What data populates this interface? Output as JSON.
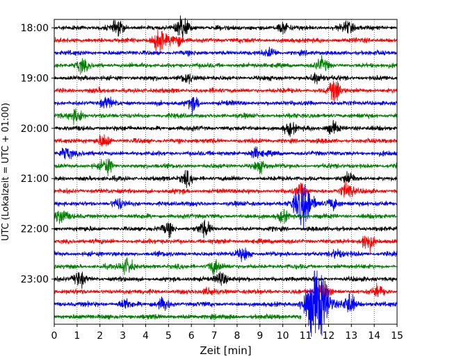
{
  "chart_data": {
    "type": "line",
    "subtype": "helicorder-seismogram",
    "xlabel": "Zeit  [min]",
    "ylabel": "UTC (Lokalzeit = UTC + 01:00)",
    "xlim": [
      0,
      15
    ],
    "x_ticks": [
      "0",
      "1",
      "2",
      "3",
      "4",
      "5",
      "6",
      "7",
      "8",
      "9",
      "10",
      "11",
      "12",
      "13",
      "14",
      "15"
    ],
    "y_tick_labels": [
      "18:00",
      "19:00",
      "20:00",
      "21:00",
      "22:00",
      "23:00"
    ],
    "grid": "vertical dotted at each minute",
    "trace_interval_min": 15,
    "trace_colors": [
      "#000000",
      "#ff0000",
      "#0000ff",
      "#008000"
    ],
    "traces": [
      {
        "start": "18:00",
        "color": "#000000",
        "events": [
          [
            2.8,
            0.3
          ],
          [
            5.6,
            0.6
          ],
          [
            10.0,
            0.25
          ],
          [
            12.8,
            0.3
          ]
        ]
      },
      {
        "start": "18:15",
        "color": "#ff0000",
        "events": [
          [
            4.6,
            0.7
          ],
          [
            5.3,
            0.3
          ]
        ]
      },
      {
        "start": "18:30",
        "color": "#0000ff",
        "events": [
          [
            9.5,
            0.2
          ]
        ]
      },
      {
        "start": "18:45",
        "color": "#008000",
        "events": [
          [
            1.2,
            0.3
          ],
          [
            11.7,
            0.3
          ]
        ]
      },
      {
        "start": "19:00",
        "color": "#000000",
        "events": [
          [
            5.8,
            0.25
          ],
          [
            11.5,
            0.3
          ]
        ]
      },
      {
        "start": "19:15",
        "color": "#ff0000",
        "events": [
          [
            12.3,
            0.6
          ]
        ]
      },
      {
        "start": "19:30",
        "color": "#0000ff",
        "events": [
          [
            6.1,
            0.35
          ],
          [
            2.3,
            0.25
          ]
        ]
      },
      {
        "start": "19:45",
        "color": "#008000",
        "events": [
          [
            1.0,
            0.4
          ]
        ]
      },
      {
        "start": "20:00",
        "color": "#000000",
        "events": [
          [
            10.3,
            0.35
          ],
          [
            12.2,
            0.3
          ]
        ]
      },
      {
        "start": "20:15",
        "color": "#ff0000",
        "events": [
          [
            2.2,
            0.35
          ]
        ]
      },
      {
        "start": "20:30",
        "color": "#0000ff",
        "events": [
          [
            0.5,
            0.35
          ],
          [
            8.8,
            0.25
          ]
        ]
      },
      {
        "start": "20:45",
        "color": "#008000",
        "events": [
          [
            2.3,
            0.35
          ],
          [
            9.0,
            0.3
          ]
        ]
      },
      {
        "start": "21:00",
        "color": "#000000",
        "events": [
          [
            5.8,
            0.35
          ],
          [
            12.9,
            0.25
          ]
        ]
      },
      {
        "start": "21:15",
        "color": "#ff0000",
        "events": [
          [
            12.8,
            0.45
          ],
          [
            10.8,
            0.3
          ]
        ]
      },
      {
        "start": "21:30",
        "color": "#0000ff",
        "events": [
          [
            10.9,
            1.1
          ],
          [
            12.2,
            0.3
          ],
          [
            2.8,
            0.25
          ]
        ]
      },
      {
        "start": "21:45",
        "color": "#008000",
        "events": [
          [
            0.3,
            0.4
          ],
          [
            10.0,
            0.3
          ]
        ]
      },
      {
        "start": "22:00",
        "color": "#000000",
        "events": [
          [
            6.6,
            0.35
          ],
          [
            5.0,
            0.3
          ]
        ]
      },
      {
        "start": "22:15",
        "color": "#ff0000",
        "events": [
          [
            13.7,
            0.5
          ]
        ]
      },
      {
        "start": "22:30",
        "color": "#0000ff",
        "events": [
          [
            8.3,
            0.3
          ],
          [
            12.3,
            0.2
          ]
        ]
      },
      {
        "start": "22:45",
        "color": "#008000",
        "events": [
          [
            3.2,
            0.4
          ],
          [
            7.0,
            0.35
          ]
        ]
      },
      {
        "start": "23:00",
        "color": "#000000",
        "events": [
          [
            1.1,
            0.35
          ],
          [
            7.3,
            0.35
          ]
        ]
      },
      {
        "start": "23:15",
        "color": "#ff0000",
        "events": [
          [
            11.8,
            0.5
          ],
          [
            14.2,
            0.25
          ],
          [
            6.8,
            0.2
          ]
        ]
      },
      {
        "start": "23:30",
        "color": "#0000ff",
        "events": [
          [
            11.5,
            2.0
          ],
          [
            12.9,
            0.6
          ],
          [
            4.8,
            0.3
          ],
          [
            3.1,
            0.25
          ]
        ]
      },
      {
        "start": "23:45",
        "color": "#008000",
        "end_min": 10.8,
        "events": []
      }
    ]
  }
}
